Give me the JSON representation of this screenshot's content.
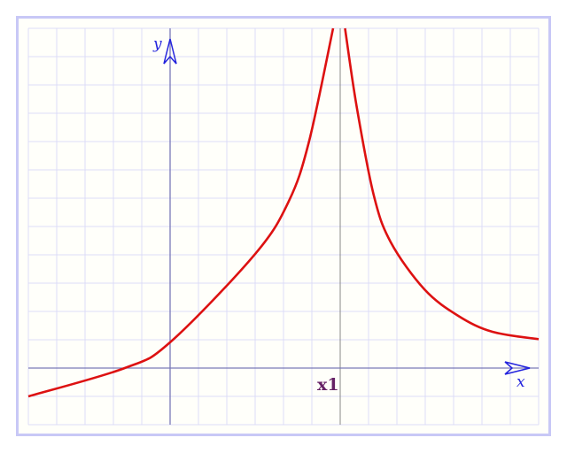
{
  "chart_data": {
    "type": "line",
    "xlabel": "x",
    "ylabel": "y",
    "xlim": [
      -5,
      13
    ],
    "ylim": [
      -2,
      12
    ],
    "grid": true,
    "asymptote": {
      "x": 6,
      "label": "x1"
    },
    "series": [
      {
        "segment": "left",
        "color": "#dd1111",
        "x": [
          -5,
          -1.6,
          0,
          3,
          4.19,
          4.9,
          5.75
        ],
        "y": [
          -1,
          0,
          0.91,
          4.03,
          5.9,
          8.0,
          12
        ]
      },
      {
        "segment": "right",
        "color": "#dd1111",
        "x": [
          6.17,
          6.58,
          7.18,
          7.78,
          8.97,
          10.17,
          11.37,
          13
        ],
        "y": [
          12,
          9.24,
          6.12,
          4.45,
          2.78,
          1.84,
          1.28,
          1.02
        ]
      }
    ]
  },
  "colors": {
    "grid": "#dcdcf8",
    "axis": "#7a7ab8",
    "arrow": "#2222dd",
    "curve": "#dd1111",
    "frame": "#c8c8f6",
    "asymptote": "#888888",
    "x1_label": "#662266"
  }
}
